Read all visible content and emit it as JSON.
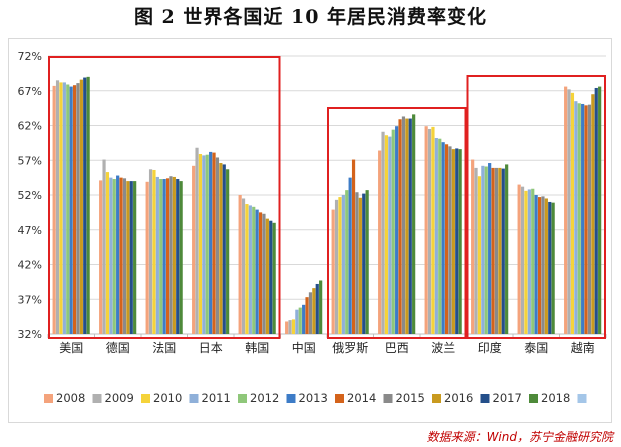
{
  "title": "图 2  世界各国近 10 年居民消费率变化",
  "source": "数据来源：Wind，苏宁金融研究院",
  "chart_data": {
    "type": "bar",
    "ylim": [
      32,
      72
    ],
    "yticks": [
      "32%",
      "37%",
      "42%",
      "47%",
      "52%",
      "57%",
      "62%",
      "67%",
      "72%"
    ],
    "yticks_values": [
      32,
      37,
      42,
      47,
      52,
      57,
      62,
      67,
      72
    ],
    "grid": true,
    "legend_position": "bottom",
    "categories": [
      "美国",
      "德国",
      "法国",
      "日本",
      "韩国",
      "中国",
      "俄罗斯",
      "巴西",
      "波兰",
      "印度",
      "泰国",
      "越南"
    ],
    "series": [
      {
        "name": "2008",
        "color": "#f4a37c",
        "values": [
          67.7,
          54.1,
          53.9,
          56.2,
          52.0,
          33.8,
          49.9,
          58.4,
          61.9,
          57.1,
          53.5,
          67.6
        ]
      },
      {
        "name": "2009",
        "color": "#b0b0b0",
        "values": [
          68.5,
          57.1,
          55.7,
          58.8,
          51.5,
          34.0,
          51.3,
          61.1,
          61.5,
          55.9,
          53.2,
          67.2
        ]
      },
      {
        "name": "2010",
        "color": "#f5d33a",
        "values": [
          68.2,
          55.3,
          55.6,
          57.9,
          50.7,
          34.1,
          51.7,
          60.6,
          61.8,
          54.7,
          52.6,
          66.7
        ]
      },
      {
        "name": "2011",
        "color": "#8fb0d9",
        "values": [
          68.2,
          54.5,
          54.6,
          57.7,
          50.5,
          35.5,
          52.0,
          60.4,
          60.2,
          56.2,
          52.8,
          65.5
        ]
      },
      {
        "name": "2012",
        "color": "#8fc77a",
        "values": [
          67.9,
          54.3,
          54.3,
          57.8,
          50.3,
          35.8,
          52.7,
          61.4,
          60.1,
          56.1,
          52.9,
          65.2
        ]
      },
      {
        "name": "2013",
        "color": "#3d7cc7",
        "values": [
          67.6,
          54.8,
          54.3,
          58.2,
          49.9,
          36.2,
          54.5,
          61.9,
          59.6,
          56.6,
          52.0,
          65.1
        ]
      },
      {
        "name": "2014",
        "color": "#d4631b",
        "values": [
          67.8,
          54.5,
          54.4,
          58.1,
          49.5,
          37.3,
          57.1,
          62.9,
          59.3,
          55.9,
          51.7,
          64.9
        ]
      },
      {
        "name": "2015",
        "color": "#8a8a8a",
        "values": [
          68.1,
          54.4,
          54.7,
          57.4,
          49.3,
          38.0,
          52.4,
          63.3,
          59.0,
          55.9,
          51.8,
          65.0
        ]
      },
      {
        "name": "2016",
        "color": "#c99a1f",
        "values": [
          68.6,
          54.0,
          54.6,
          56.6,
          48.6,
          38.6,
          51.6,
          63.0,
          58.6,
          55.9,
          51.5,
          66.5
        ]
      },
      {
        "name": "2017",
        "color": "#244f8a",
        "values": [
          68.9,
          54.0,
          54.3,
          56.4,
          48.3,
          39.2,
          52.2,
          63.0,
          58.7,
          55.8,
          51.0,
          67.4
        ]
      },
      {
        "name": "2018",
        "color": "#4e8a3a",
        "values": [
          69.0,
          54.0,
          54.0,
          55.7,
          48.0,
          39.7,
          52.7,
          63.6,
          58.6,
          56.4,
          50.9,
          67.6
        ]
      },
      {
        "name": "",
        "color": "#a4c6e8",
        "values": [
          null,
          null,
          null,
          null,
          null,
          null,
          null,
          null,
          null,
          null,
          null,
          null
        ]
      }
    ]
  }
}
